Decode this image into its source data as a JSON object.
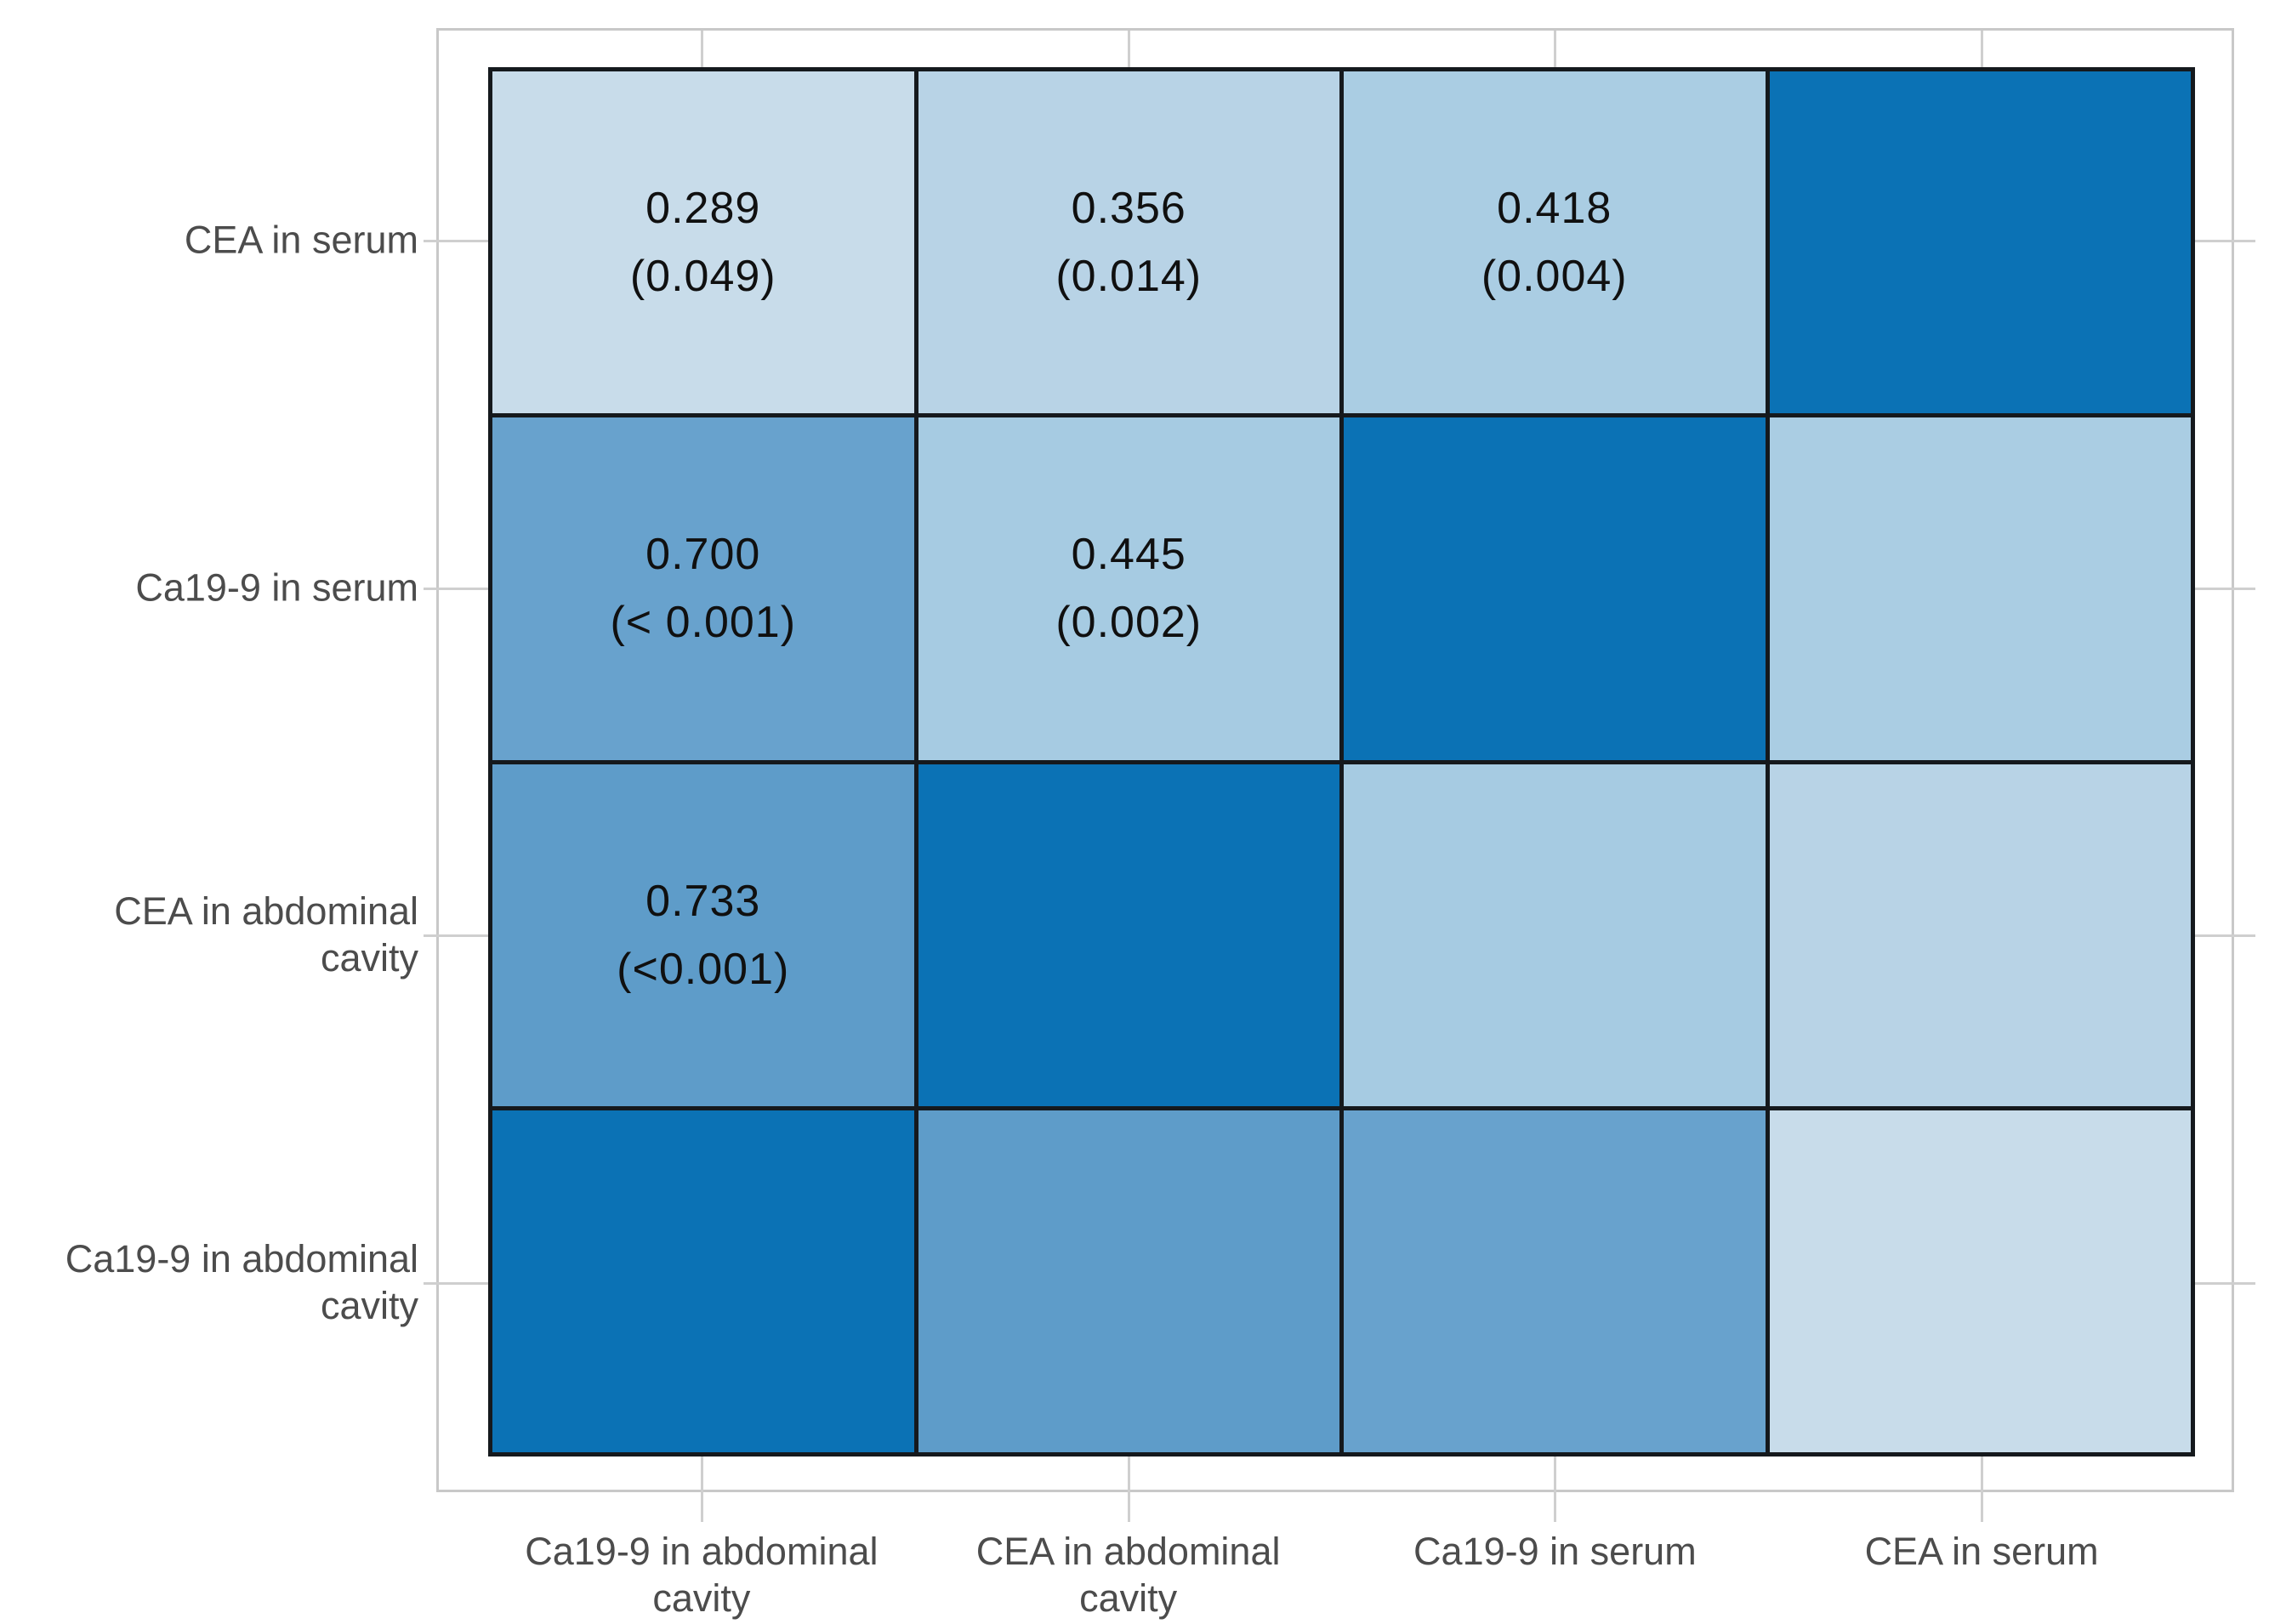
{
  "figure": {
    "background": "#ffffff",
    "panel_border_color": "#c8c8c8",
    "grid_line_color": "#15191d",
    "tick_color": "#cfcfcf",
    "axis_label_color": "#4c4c4c",
    "cell_text_color": "#101010",
    "color_low": "#c8dcea",
    "color_high": "#0b72b5"
  },
  "chart_data": {
    "type": "heatmap",
    "title": "",
    "xlabel": "",
    "ylabel": "",
    "x_categories": [
      "Ca19-9 in abdominal cavity",
      "CEA in abdominal cavity",
      "Ca19-9 in serum",
      "CEA in serum"
    ],
    "y_categories_top_to_bottom": [
      "CEA in serum",
      "Ca19-9 in serum",
      "CEA in abdominal cavity",
      "Ca19-9 in abdominal cavity"
    ],
    "legend": "none",
    "cells": [
      {
        "row": "CEA in serum",
        "col": "Ca19-9 in abdominal cavity",
        "r": 0.289,
        "label": "0.289",
        "p_label": "(0.049)",
        "color": "#c8dcea"
      },
      {
        "row": "CEA in serum",
        "col": "CEA in abdominal cavity",
        "r": 0.356,
        "label": "0.356",
        "p_label": "(0.014)",
        "color": "#b8d3e6"
      },
      {
        "row": "CEA in serum",
        "col": "Ca19-9 in serum",
        "r": 0.418,
        "label": "0.418",
        "p_label": "(0.004)",
        "color": "#aacde3"
      },
      {
        "row": "CEA in serum",
        "col": "CEA in serum",
        "r": 1.0,
        "label": "",
        "p_label": "",
        "color": "#0b72b5"
      },
      {
        "row": "Ca19-9 in serum",
        "col": "Ca19-9 in abdominal cavity",
        "r": 0.7,
        "label": "0.700",
        "p_label": "(< 0.001)",
        "color": "#68a2cd"
      },
      {
        "row": "Ca19-9 in serum",
        "col": "CEA in abdominal cavity",
        "r": 0.445,
        "label": "0.445",
        "p_label": "(0.002)",
        "color": "#a6cbe2"
      },
      {
        "row": "Ca19-9 in serum",
        "col": "Ca19-9 in serum",
        "r": 1.0,
        "label": "",
        "p_label": "",
        "color": "#0b72b5"
      },
      {
        "row": "Ca19-9 in serum",
        "col": "CEA in serum",
        "r": 0.418,
        "label": "",
        "p_label": "",
        "color": "#aacde3"
      },
      {
        "row": "CEA in abdominal cavity",
        "col": "Ca19-9 in abdominal cavity",
        "r": 0.733,
        "label": "0.733",
        "p_label": "(<0.001)",
        "color": "#5e9cc9"
      },
      {
        "row": "CEA in abdominal cavity",
        "col": "CEA in abdominal cavity",
        "r": 1.0,
        "label": "",
        "p_label": "",
        "color": "#0b72b5"
      },
      {
        "row": "CEA in abdominal cavity",
        "col": "Ca19-9 in serum",
        "r": 0.445,
        "label": "",
        "p_label": "",
        "color": "#a6cbe2"
      },
      {
        "row": "CEA in abdominal cavity",
        "col": "CEA in serum",
        "r": 0.356,
        "label": "",
        "p_label": "",
        "color": "#b8d3e6"
      },
      {
        "row": "Ca19-9 in abdominal cavity",
        "col": "Ca19-9 in abdominal cavity",
        "r": 1.0,
        "label": "",
        "p_label": "",
        "color": "#0b72b5"
      },
      {
        "row": "Ca19-9 in abdominal cavity",
        "col": "CEA in abdominal cavity",
        "r": 0.733,
        "label": "",
        "p_label": "",
        "color": "#5e9cc9"
      },
      {
        "row": "Ca19-9 in abdominal cavity",
        "col": "Ca19-9 in serum",
        "r": 0.7,
        "label": "",
        "p_label": "",
        "color": "#68a2cd"
      },
      {
        "row": "Ca19-9 in abdominal cavity",
        "col": "CEA in serum",
        "r": 0.289,
        "label": "",
        "p_label": "",
        "color": "#c8dcea"
      }
    ]
  },
  "y_axis": {
    "labels": [
      {
        "lines": [
          "CEA in serum"
        ]
      },
      {
        "lines": [
          "Ca19-9 in serum"
        ]
      },
      {
        "lines": [
          "CEA in abdominal",
          "cavity"
        ]
      },
      {
        "lines": [
          "Ca19-9 in abdominal",
          "cavity"
        ]
      }
    ]
  },
  "x_axis": {
    "labels": [
      {
        "lines": [
          "Ca19-9 in abdominal",
          "cavity"
        ]
      },
      {
        "lines": [
          "CEA in abdominal",
          "cavity"
        ]
      },
      {
        "lines": [
          "Ca19-9 in serum"
        ]
      },
      {
        "lines": [
          "CEA in serum"
        ]
      }
    ]
  }
}
